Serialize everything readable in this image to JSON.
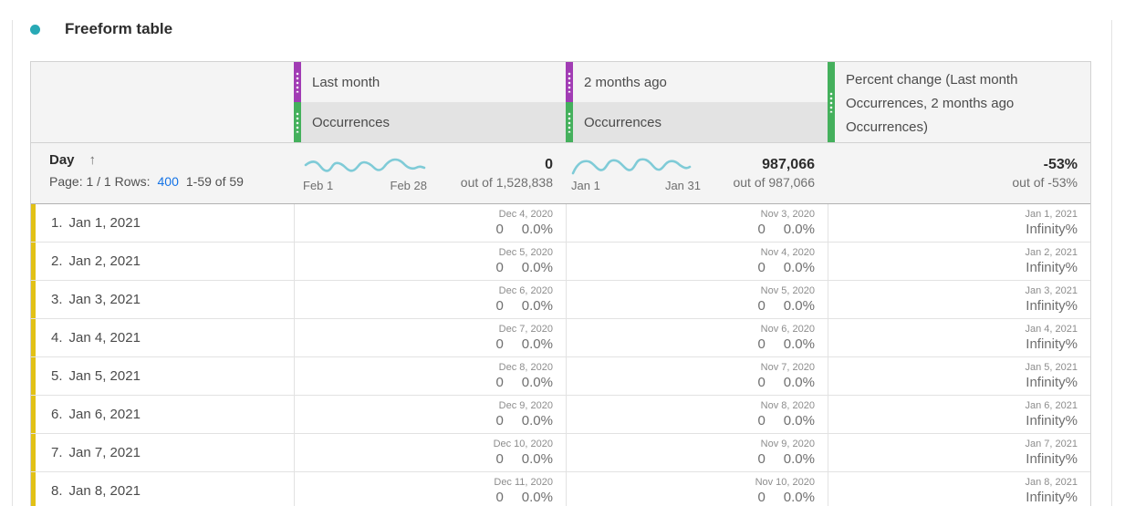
{
  "title": {
    "text": "Freeform table"
  },
  "header": {
    "col1": {
      "group": "Last month",
      "metric": "Occurrences"
    },
    "col2": {
      "group": "2 months ago",
      "metric": "Occurrences"
    },
    "col3": {
      "label": "Percent change (Last month Occurrences, 2 months ago Occurrences)"
    }
  },
  "day_header": {
    "label": "Day",
    "sort_icon": "↑",
    "page_text": "Page: 1 / 1 Rows:",
    "rows_link": "400",
    "range_text": "1-59 of 59"
  },
  "totals": {
    "col1": {
      "spark_start": "Feb 1",
      "spark_end": "Feb 28",
      "value": "0",
      "out_of": "out of 1,528,838"
    },
    "col2": {
      "spark_start": "Jan 1",
      "spark_end": "Jan 31",
      "value": "987,066",
      "out_of": "out of 987,066"
    },
    "col3": {
      "value": "-53%",
      "out_of": "out of -53%"
    }
  },
  "rows": [
    {
      "index": "1.",
      "label": "Jan 1, 2021",
      "c1_date": "Dec 4, 2020",
      "c1_value": "0",
      "c1_pct": "0.0%",
      "c2_date": "Nov 3, 2020",
      "c2_value": "0",
      "c2_pct": "0.0%",
      "c3_date": "Jan 1, 2021",
      "c3_value": "Infinity%"
    },
    {
      "index": "2.",
      "label": "Jan 2, 2021",
      "c1_date": "Dec 5, 2020",
      "c1_value": "0",
      "c1_pct": "0.0%",
      "c2_date": "Nov 4, 2020",
      "c2_value": "0",
      "c2_pct": "0.0%",
      "c3_date": "Jan 2, 2021",
      "c3_value": "Infinity%"
    },
    {
      "index": "3.",
      "label": "Jan 3, 2021",
      "c1_date": "Dec 6, 2020",
      "c1_value": "0",
      "c1_pct": "0.0%",
      "c2_date": "Nov 5, 2020",
      "c2_value": "0",
      "c2_pct": "0.0%",
      "c3_date": "Jan 3, 2021",
      "c3_value": "Infinity%"
    },
    {
      "index": "4.",
      "label": "Jan 4, 2021",
      "c1_date": "Dec 7, 2020",
      "c1_value": "0",
      "c1_pct": "0.0%",
      "c2_date": "Nov 6, 2020",
      "c2_value": "0",
      "c2_pct": "0.0%",
      "c3_date": "Jan 4, 2021",
      "c3_value": "Infinity%"
    },
    {
      "index": "5.",
      "label": "Jan 5, 2021",
      "c1_date": "Dec 8, 2020",
      "c1_value": "0",
      "c1_pct": "0.0%",
      "c2_date": "Nov 7, 2020",
      "c2_value": "0",
      "c2_pct": "0.0%",
      "c3_date": "Jan 5, 2021",
      "c3_value": "Infinity%"
    },
    {
      "index": "6.",
      "label": "Jan 6, 2021",
      "c1_date": "Dec 9, 2020",
      "c1_value": "0",
      "c1_pct": "0.0%",
      "c2_date": "Nov 8, 2020",
      "c2_value": "0",
      "c2_pct": "0.0%",
      "c3_date": "Jan 6, 2021",
      "c3_value": "Infinity%"
    },
    {
      "index": "7.",
      "label": "Jan 7, 2021",
      "c1_date": "Dec 10, 2020",
      "c1_value": "0",
      "c1_pct": "0.0%",
      "c2_date": "Nov 9, 2020",
      "c2_value": "0",
      "c2_pct": "0.0%",
      "c3_date": "Jan 7, 2021",
      "c3_value": "Infinity%"
    },
    {
      "index": "8.",
      "label": "Jan 8, 2021",
      "c1_date": "Dec 11, 2020",
      "c1_value": "0",
      "c1_pct": "0.0%",
      "c2_date": "Nov 10, 2020",
      "c2_value": "0",
      "c2_pct": "0.0%",
      "c3_date": "Jan 8, 2021",
      "c3_value": "Infinity%"
    }
  ],
  "colors": {
    "accent_teal": "#28a9b5",
    "dimension_purple": "#a13cb4",
    "metric_green": "#44b05c",
    "row_yellow": "#e2c116",
    "sparkline": "#7fcbd7",
    "link_blue": "#1473e6"
  }
}
